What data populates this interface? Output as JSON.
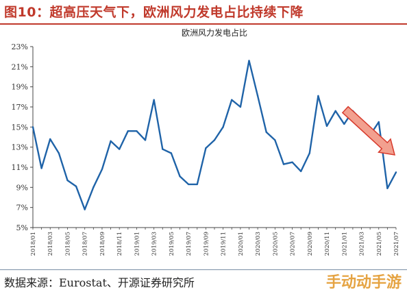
{
  "figure": {
    "title": "图10：超高压天气下，欧洲风力发电占比持续下降",
    "source": "数据来源：Eurostat、开源证券研究所",
    "watermark": "手动动手游"
  },
  "colors": {
    "title": "#c0392b",
    "line": "#1f63a8",
    "arrow_fill": "#f2a08f",
    "arrow_stroke": "#d73a2c",
    "axis": "#444444"
  },
  "chart_data": {
    "type": "line",
    "title": "欧洲风力发电占比",
    "xlabel": "",
    "ylabel": "",
    "ylim": [
      5,
      23
    ],
    "yticks": [
      "5%",
      "7%",
      "9%",
      "11%",
      "13%",
      "15%",
      "17%",
      "19%",
      "21%",
      "23%"
    ],
    "ytick_values": [
      5,
      7,
      9,
      11,
      13,
      15,
      17,
      19,
      21,
      23
    ],
    "grid": false,
    "x": [
      "2018/01",
      "2018/02",
      "2018/03",
      "2018/04",
      "2018/05",
      "2018/06",
      "2018/07",
      "2018/08",
      "2018/09",
      "2018/10",
      "2018/11",
      "2018/12",
      "2019/01",
      "2019/02",
      "2019/03",
      "2019/04",
      "2019/05",
      "2019/06",
      "2019/07",
      "2019/08",
      "2019/09",
      "2019/10",
      "2019/11",
      "2019/12",
      "2020/01",
      "2020/02",
      "2020/03",
      "2020/04",
      "2020/05",
      "2020/06",
      "2020/07",
      "2020/08",
      "2020/09",
      "2020/10",
      "2020/11",
      "2020/12",
      "2021/01",
      "2021/02",
      "2021/03",
      "2021/04",
      "2021/05",
      "2021/06",
      "2021/07"
    ],
    "xtick_labels": [
      "2018/01",
      "2018/03",
      "2018/05",
      "2018/07",
      "2018/09",
      "2018/11",
      "2019/01",
      "2019/03",
      "2019/05",
      "2019/07",
      "2019/09",
      "2019/11",
      "2020/01",
      "2020/03",
      "2020/05",
      "2020/07",
      "2020/09",
      "2020/11",
      "2021/01",
      "2021/03",
      "2021/05",
      "2021/07"
    ],
    "series": [
      {
        "values": [
          15.0,
          10.9,
          13.8,
          12.4,
          9.7,
          9.1,
          6.8,
          9.0,
          10.8,
          13.6,
          12.8,
          14.6,
          14.6,
          13.7,
          17.7,
          12.8,
          12.4,
          10.1,
          9.3,
          9.3,
          12.9,
          13.7,
          15.0,
          17.7,
          17.0,
          21.6,
          18.1,
          14.5,
          13.7,
          11.3,
          11.5,
          10.6,
          12.4,
          18.1,
          15.1,
          16.6,
          15.3,
          16.6,
          15.7,
          14.2,
          15.5,
          8.9,
          10.5
        ]
      }
    ],
    "annotation": "downward-arrow"
  }
}
